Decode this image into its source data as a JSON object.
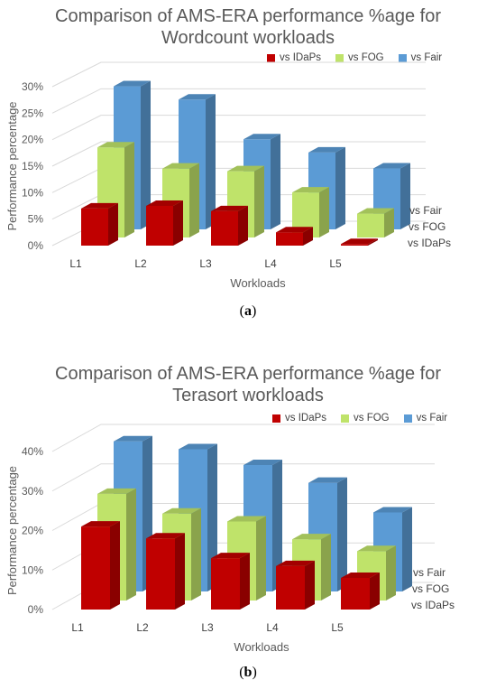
{
  "panels": [
    {
      "caption": "a",
      "chart_data": {
        "type": "bar",
        "title_line1": "Comparison of AMS-ERA performance %age for",
        "title_line2": "Wordcount workloads",
        "xlabel": "Workloads",
        "ylabel": "Performance percentage",
        "categories": [
          "L1",
          "L2",
          "L3",
          "L4",
          "L5"
        ],
        "yticks": [
          "0%",
          "5%",
          "10%",
          "15%",
          "20%",
          "25%",
          "30%"
        ],
        "ylim": [
          0,
          30
        ],
        "depth_labels": [
          "vs IDaPs",
          "vs FOG",
          "vs Fair"
        ],
        "series": [
          {
            "name": "vs IDaPs",
            "color": "#c00000",
            "values": [
              7,
              7.5,
              6.5,
              2.5,
              0.3
            ]
          },
          {
            "name": "vs FOG",
            "color": "#bfe36a",
            "values": [
              17,
              13,
              12.5,
              8.5,
              4.5
            ]
          },
          {
            "name": "vs Fair",
            "color": "#5b9bd5",
            "values": [
              27,
              24.5,
              17,
              14.5,
              11.5
            ]
          }
        ],
        "legend": "top-right",
        "grid": true
      }
    },
    {
      "caption": "b",
      "chart_data": {
        "type": "bar",
        "title_line1": "Comparison of AMS-ERA performance %age for",
        "title_line2": "Terasort workloads",
        "xlabel": "Workloads",
        "ylabel": "Performance percentage",
        "categories": [
          "L1",
          "L2",
          "L3",
          "L4",
          "L5"
        ],
        "yticks": [
          "0%",
          "10%",
          "20%",
          "30%",
          "40%"
        ],
        "ylim": [
          0,
          40
        ],
        "depth_labels": [
          "vs IDaPs",
          "vs FOG",
          "vs Fair"
        ],
        "series": [
          {
            "name": "vs IDaPs",
            "color": "#c00000",
            "values": [
              21,
              18,
              13,
              11,
              8
            ]
          },
          {
            "name": "vs FOG",
            "color": "#bfe36a",
            "values": [
              27,
              22,
              20,
              15.5,
              12.5
            ]
          },
          {
            "name": "vs Fair",
            "color": "#5b9bd5",
            "values": [
              38,
              36,
              32,
              27.5,
              20
            ]
          }
        ],
        "legend": "top-right",
        "grid": true
      }
    }
  ]
}
